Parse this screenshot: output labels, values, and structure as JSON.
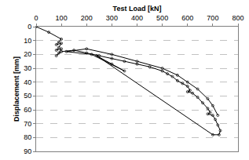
{
  "chart_data": {
    "type": "line",
    "x_label": "Test Load [kN]",
    "y_label": "Displacement [mm]",
    "x": [
      0,
      50,
      100,
      90,
      80,
      100,
      90,
      80,
      100,
      90,
      80,
      100,
      150,
      200,
      250,
      300,
      350,
      400,
      450,
      500,
      520,
      540,
      560,
      580,
      600,
      610,
      600,
      620,
      640,
      660,
      680,
      690,
      680,
      700,
      710,
      720,
      730,
      725,
      700,
      240,
      300,
      350,
      220,
      120,
      200,
      300,
      400,
      500,
      560,
      600,
      640,
      680,
      700,
      720
    ],
    "values": [
      0,
      4,
      9,
      11,
      13,
      12,
      15,
      17,
      16,
      19,
      21,
      18,
      17,
      19,
      21,
      23,
      25,
      27,
      29,
      32,
      34,
      36,
      39,
      41,
      43,
      46,
      47,
      48,
      51,
      55,
      59,
      62,
      63,
      64,
      67,
      71,
      75,
      78,
      78,
      21,
      27,
      32,
      20,
      18,
      16,
      20,
      25,
      30,
      35,
      40,
      45,
      52,
      57,
      64
    ],
    "color": "#000000",
    "marker": "circle-open",
    "line_style": "solid",
    "xlim": [
      0,
      800
    ],
    "xticks": [
      0,
      100,
      200,
      300,
      400,
      500,
      600,
      700,
      800
    ],
    "ylim": [
      90,
      0
    ],
    "yticks": [
      0,
      10,
      20,
      30,
      40,
      50,
      60,
      70,
      80,
      90
    ],
    "grid": true
  }
}
